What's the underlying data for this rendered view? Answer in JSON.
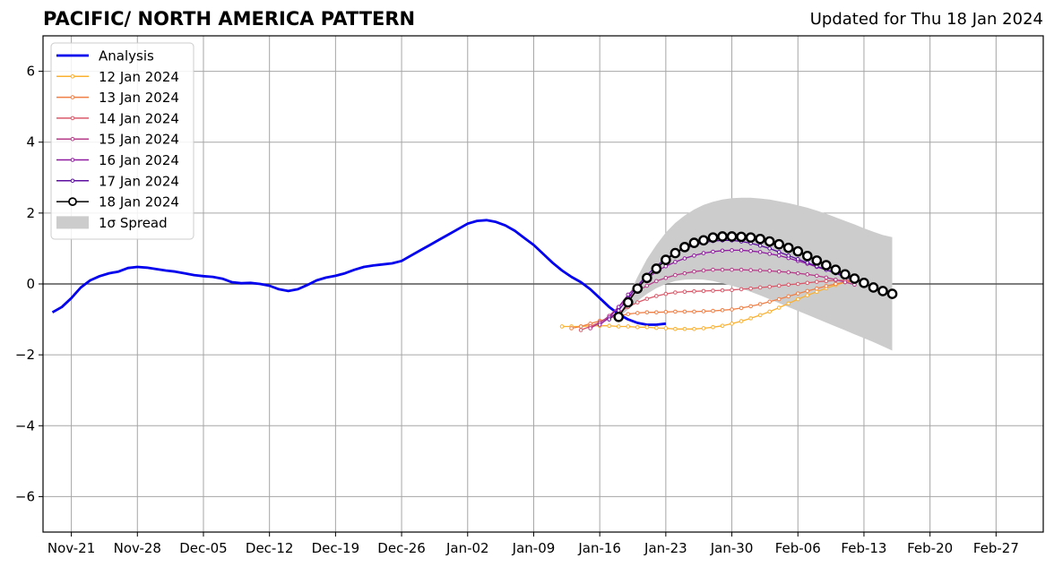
{
  "chart_data": {
    "type": "line",
    "title": "PACIFIC/ NORTH AMERICA PATTERN",
    "subtitle": "Updated for Thu 18 Jan 2024",
    "xlabel": "",
    "ylabel": "",
    "xlim": [
      "2023-11-18",
      "2024-03-03"
    ],
    "ylim": [
      -7,
      7
    ],
    "y_ticks": [
      -6,
      -4,
      -2,
      0,
      2,
      4,
      6
    ],
    "y_tick_labels": [
      "−6",
      "−4",
      "−2",
      "0",
      "2",
      "4",
      "6"
    ],
    "x_ticks": [
      "2023-11-21",
      "2023-11-28",
      "2023-12-05",
      "2023-12-12",
      "2023-12-19",
      "2023-12-26",
      "2024-01-02",
      "2024-01-09",
      "2024-01-16",
      "2024-01-23",
      "2024-01-30",
      "2024-02-06",
      "2024-02-13",
      "2024-02-20",
      "2024-02-27"
    ],
    "x_tick_labels": [
      "Nov-21",
      "Nov-28",
      "Dec-05",
      "Dec-12",
      "Dec-19",
      "Dec-26",
      "Jan-02",
      "Jan-09",
      "Jan-16",
      "Jan-23",
      "Jan-30",
      "Feb-06",
      "Feb-13",
      "Feb-20",
      "Feb-27"
    ],
    "grid": true,
    "zero_line": true,
    "legend_position": "top-left",
    "legend": [
      "Analysis",
      "12 Jan 2024",
      "13 Jan 2024",
      "14 Jan 2024",
      "15 Jan 2024",
      "16 Jan 2024",
      "17 Jan 2024",
      "18 Jan 2024",
      "1σ Spread"
    ],
    "analysis": {
      "name": "Analysis",
      "color": "#0000ee",
      "start": "2023-11-19",
      "values": [
        -0.8,
        -0.65,
        -0.4,
        -0.1,
        0.1,
        0.22,
        0.3,
        0.35,
        0.45,
        0.48,
        0.46,
        0.42,
        0.38,
        0.35,
        0.3,
        0.25,
        0.22,
        0.2,
        0.15,
        0.05,
        0.02,
        0.03,
        0.0,
        -0.05,
        -0.15,
        -0.2,
        -0.15,
        -0.03,
        0.1,
        0.18,
        0.23,
        0.3,
        0.4,
        0.48,
        0.52,
        0.55,
        0.58,
        0.65,
        0.8,
        0.95,
        1.1,
        1.25,
        1.4,
        1.55,
        1.7,
        1.78,
        1.8,
        1.75,
        1.65,
        1.5,
        1.3,
        1.1,
        0.85,
        0.6,
        0.38,
        0.2,
        0.05,
        -0.15,
        -0.4,
        -0.65,
        -0.85,
        -1.0,
        -1.1,
        -1.15,
        -1.15,
        -1.12
      ]
    },
    "forecasts": [
      {
        "name": "12 Jan 2024",
        "color": "#fbb130",
        "start": "2024-01-12",
        "values": [
          -1.2,
          -1.2,
          -1.2,
          -1.18,
          -1.18,
          -1.18,
          -1.2,
          -1.2,
          -1.22,
          -1.22,
          -1.24,
          -1.25,
          -1.27,
          -1.27,
          -1.27,
          -1.25,
          -1.22,
          -1.18,
          -1.12,
          -1.05,
          -0.97,
          -0.88,
          -0.78,
          -0.67,
          -0.55,
          -0.43,
          -0.32,
          -0.22,
          -0.12,
          -0.03,
          0.05,
          0.1
        ]
      },
      {
        "name": "13 Jan 2024",
        "color": "#f07f45",
        "start": "2024-01-13",
        "values": [
          -1.25,
          -1.2,
          -1.12,
          -1.04,
          -0.97,
          -0.9,
          -0.85,
          -0.82,
          -0.8,
          -0.8,
          -0.79,
          -0.78,
          -0.78,
          -0.78,
          -0.77,
          -0.76,
          -0.74,
          -0.72,
          -0.68,
          -0.63,
          -0.57,
          -0.5,
          -0.43,
          -0.35,
          -0.27,
          -0.2,
          -0.13,
          -0.06,
          0.0,
          0.05,
          0.08
        ]
      },
      {
        "name": "14 Jan 2024",
        "color": "#d9596a",
        "start": "2024-01-14",
        "values": [
          -1.3,
          -1.2,
          -1.08,
          -0.95,
          -0.8,
          -0.65,
          -0.52,
          -0.42,
          -0.34,
          -0.28,
          -0.24,
          -0.22,
          -0.21,
          -0.2,
          -0.19,
          -0.18,
          -0.17,
          -0.15,
          -0.13,
          -0.1,
          -0.08,
          -0.05,
          -0.02,
          0.0,
          0.03,
          0.06,
          0.08,
          0.1,
          0.1,
          0.1
        ]
      },
      {
        "name": "15 Jan 2024",
        "color": "#b63c8a",
        "start": "2024-01-15",
        "values": [
          -1.25,
          -1.1,
          -0.9,
          -0.65,
          -0.4,
          -0.2,
          -0.05,
          0.08,
          0.17,
          0.25,
          0.3,
          0.35,
          0.38,
          0.4,
          0.4,
          0.4,
          0.4,
          0.39,
          0.38,
          0.37,
          0.35,
          0.33,
          0.3,
          0.27,
          0.23,
          0.18,
          0.12,
          0.05,
          -0.02
        ]
      },
      {
        "name": "16 Jan 2024",
        "color": "#8f1ca0",
        "start": "2024-01-16",
        "values": [
          -1.15,
          -0.95,
          -0.65,
          -0.3,
          -0.05,
          0.15,
          0.35,
          0.5,
          0.62,
          0.72,
          0.8,
          0.87,
          0.91,
          0.94,
          0.95,
          0.95,
          0.93,
          0.9,
          0.85,
          0.8,
          0.73,
          0.65,
          0.57,
          0.48,
          0.4,
          0.32,
          0.25,
          0.18
        ]
      },
      {
        "name": "17 Jan 2024",
        "color": "#5d0fa0",
        "start": "2024-01-17",
        "values": [
          -1.0,
          -0.75,
          -0.4,
          -0.05,
          0.25,
          0.5,
          0.72,
          0.88,
          1.0,
          1.1,
          1.17,
          1.21,
          1.23,
          1.23,
          1.2,
          1.15,
          1.08,
          1.0,
          0.9,
          0.8,
          0.7,
          0.6,
          0.5,
          0.4,
          0.3,
          0.2,
          0.1
        ]
      },
      {
        "name": "18 Jan 2024",
        "color": "#000000",
        "start": "2024-01-18",
        "values": [
          -0.93,
          -0.52,
          -0.13,
          0.17,
          0.43,
          0.68,
          0.87,
          1.04,
          1.16,
          1.23,
          1.31,
          1.34,
          1.34,
          1.33,
          1.31,
          1.27,
          1.2,
          1.12,
          1.02,
          0.92,
          0.79,
          0.66,
          0.53,
          0.4,
          0.27,
          0.15,
          0.03,
          -0.1,
          -0.2,
          -0.28
        ]
      }
    ],
    "spread": {
      "name": "1σ Spread",
      "color": "#cccccc",
      "start": "2024-01-18",
      "upper": [
        -0.9,
        -0.35,
        0.2,
        0.7,
        1.1,
        1.45,
        1.72,
        1.93,
        2.1,
        2.23,
        2.32,
        2.38,
        2.42,
        2.43,
        2.43,
        2.41,
        2.38,
        2.33,
        2.28,
        2.22,
        2.15,
        2.07,
        1.98,
        1.88,
        1.78,
        1.68,
        1.57,
        1.47,
        1.38,
        1.32
      ],
      "lower": [
        -0.95,
        -0.72,
        -0.48,
        -0.28,
        -0.12,
        0.0,
        0.08,
        0.12,
        0.13,
        0.12,
        0.08,
        0.02,
        -0.05,
        -0.13,
        -0.22,
        -0.32,
        -0.43,
        -0.54,
        -0.65,
        -0.76,
        -0.87,
        -0.98,
        -1.09,
        -1.2,
        -1.31,
        -1.42,
        -1.53,
        -1.64,
        -1.76,
        -1.88
      ]
    }
  }
}
